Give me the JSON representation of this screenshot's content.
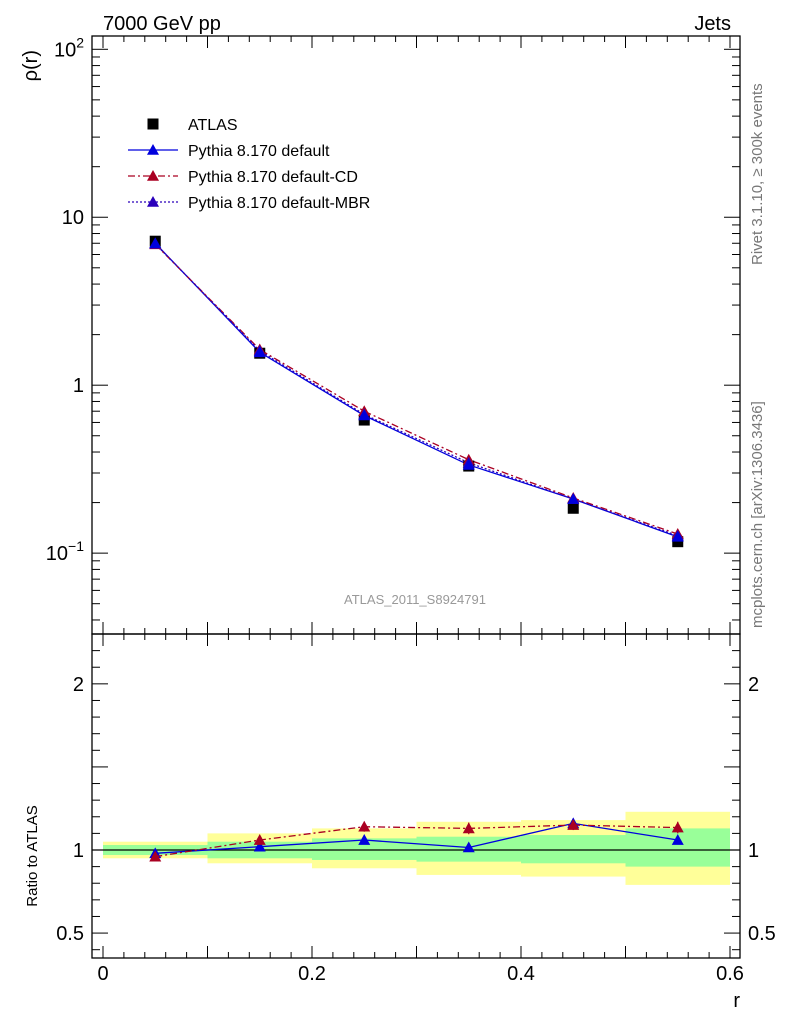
{
  "header": {
    "left_label": "7000 GeV pp",
    "right_label": "Jets"
  },
  "side_labels": {
    "rivet": "Rivet 3.1.10, ≥ 300k events",
    "mcplots": "mcplots.cern.ch [arXiv:1306.3436]"
  },
  "watermark": "ATLAS_2011_S8924791",
  "chart_data": [
    {
      "type": "scatter",
      "panel": "main",
      "ylabel": "ρ(r)",
      "xlabel": "",
      "yscale": "log",
      "xlim": [
        0,
        0.6
      ],
      "ylim": [
        0.033,
        120
      ],
      "y_ticks": [
        {
          "value": 0.1,
          "base": "10",
          "exp": "−1"
        },
        {
          "value": 1,
          "base": "1",
          "exp": ""
        },
        {
          "value": 10,
          "base": "10",
          "exp": ""
        },
        {
          "value": 100,
          "base": "10",
          "exp": "2"
        }
      ],
      "legend_position": "top-left",
      "x": [
        0.05,
        0.15,
        0.25,
        0.35,
        0.45,
        0.55
      ],
      "series": [
        {
          "name": "ATLAS",
          "values": [
            7.2,
            1.55,
            0.62,
            0.33,
            0.185,
            0.117
          ],
          "color": "#000000",
          "marker": "square",
          "line": "none"
        },
        {
          "name": "Pythia 8.170 default",
          "values": [
            7.0,
            1.57,
            0.66,
            0.335,
            0.21,
            0.125
          ],
          "color": "#0000dd",
          "marker": "triangle",
          "line": "solid"
        },
        {
          "name": "Pythia 8.170 default-CD",
          "values": [
            6.9,
            1.63,
            0.7,
            0.36,
            0.213,
            0.13
          ],
          "color": "#aa0022",
          "marker": "triangle",
          "line": "dashdot"
        },
        {
          "name": "Pythia 8.170 default-MBR",
          "values": [
            6.95,
            1.6,
            0.67,
            0.345,
            0.21,
            0.127
          ],
          "color": "#2a00bb",
          "marker": "triangle",
          "line": "dotted"
        }
      ]
    },
    {
      "type": "scatter",
      "panel": "ratio",
      "ylabel": "Ratio to ATLAS",
      "xlabel": "r",
      "xlim": [
        0,
        0.6
      ],
      "ylim": [
        0.35,
        2.3
      ],
      "x_ticks": [
        0,
        0.2,
        0.4,
        0.6
      ],
      "y_ticks": [
        0.5,
        1,
        2
      ],
      "reference_line": 1,
      "bins": [
        [
          0,
          0.1
        ],
        [
          0.1,
          0.2
        ],
        [
          0.2,
          0.3
        ],
        [
          0.3,
          0.4
        ],
        [
          0.4,
          0.5
        ],
        [
          0.5,
          0.6
        ]
      ],
      "band_inner": [
        [
          0.97,
          1.03
        ],
        [
          0.95,
          1.05
        ],
        [
          0.94,
          1.07
        ],
        [
          0.93,
          1.08
        ],
        [
          0.92,
          1.09
        ],
        [
          0.9,
          1.13
        ]
      ],
      "band_outer": [
        [
          0.95,
          1.05
        ],
        [
          0.92,
          1.1
        ],
        [
          0.89,
          1.13
        ],
        [
          0.85,
          1.17
        ],
        [
          0.84,
          1.18
        ],
        [
          0.79,
          1.23
        ]
      ],
      "band_inner_color": "#99ff99",
      "band_outer_color": "#ffff99",
      "x": [
        0.05,
        0.15,
        0.25,
        0.35,
        0.45,
        0.55
      ],
      "series": [
        {
          "name": "Pythia 8.170 default",
          "values": [
            0.98,
            1.02,
            1.06,
            1.015,
            1.16,
            1.06
          ],
          "errors": [
            0.015,
            0.015,
            0.02,
            0.025,
            0.03,
            0.02
          ],
          "color": "#0000dd",
          "line": "solid"
        },
        {
          "name": "Pythia 8.170 default-CD",
          "values": [
            0.96,
            1.06,
            1.14,
            1.13,
            1.15,
            1.135
          ],
          "errors": [
            0.015,
            0.015,
            0.03,
            0.035,
            0.03,
            0.035
          ],
          "color": "#aa0022",
          "line": "dashdot"
        }
      ]
    }
  ]
}
